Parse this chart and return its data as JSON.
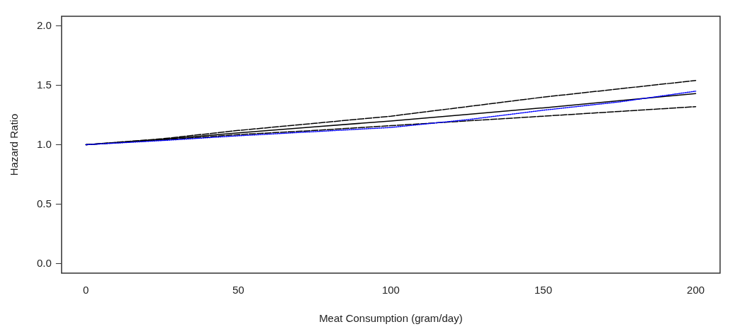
{
  "chart_data": {
    "type": "line",
    "xlabel": "Meat Consumption (gram/day)",
    "ylabel": "Hazard Ratio",
    "xlim": [
      -8,
      208
    ],
    "xticks": [
      0,
      50,
      100,
      150,
      200
    ],
    "ylim": [
      -0.08,
      2.08
    ],
    "yticks": [
      {
        "value": 0,
        "label": "0.0"
      },
      0.5,
      {
        "value": 1,
        "label": "1.0"
      },
      1.5,
      {
        "value": 2,
        "label": "2.0"
      }
    ],
    "grid": false,
    "legend": false,
    "marker": "none",
    "x": [
      0,
      25,
      50,
      75,
      100,
      125,
      150,
      175,
      200
    ],
    "series": [
      {
        "color": "#000000",
        "line_style": "solid",
        "values": [
          1,
          1.045,
          1.1,
          1.15,
          1.2,
          1.255,
          1.31,
          1.37,
          1.43
        ]
      },
      {
        "color": "#000000",
        "line_style": "dashed",
        "values": [
          1,
          1.05,
          1.12,
          1.18,
          1.24,
          1.32,
          1.4,
          1.47,
          1.54
        ]
      },
      {
        "color": "#000000",
        "line_style": "dashed",
        "values": [
          1,
          1.04,
          1.085,
          1.12,
          1.16,
          1.2,
          1.24,
          1.28,
          1.32
        ]
      },
      {
        "color": "#0000ff",
        "line_style": "dotted",
        "values": [
          1,
          1.035,
          1.075,
          1.11,
          1.145,
          1.21,
          1.29,
          1.36,
          1.45
        ]
      }
    ]
  }
}
